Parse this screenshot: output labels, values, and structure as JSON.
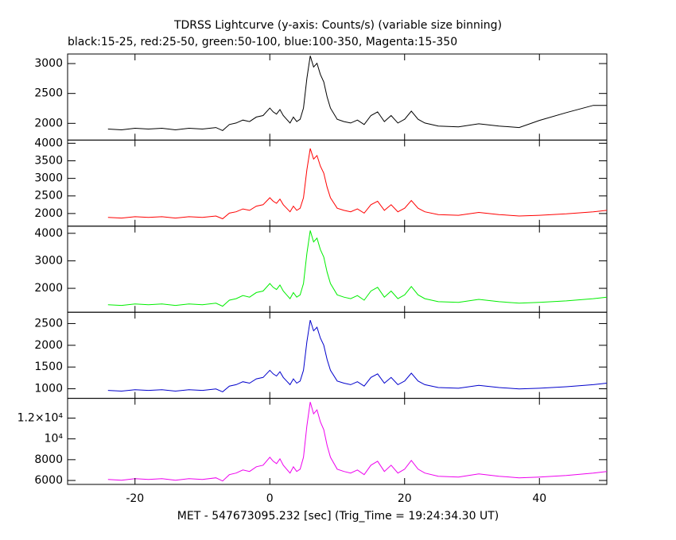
{
  "chart_data": {
    "type": "line",
    "title": "TDRSS Lightcurve (y-axis: Counts/s) (variable size binning)",
    "subtitle": "black:15-25, red:25-50, green:50-100, blue:100-350, Magenta:15-350",
    "xlabel": "MET - 547673095.232 [sec] (Trig_Time = 19:24:34.30 UT)",
    "xlim": [
      -30,
      50
    ],
    "xticks": [
      -20,
      0,
      20,
      40
    ],
    "x": [
      -24,
      -22,
      -20,
      -18,
      -16,
      -14,
      -12,
      -10,
      -8,
      -7,
      -6,
      -5,
      -4,
      -3,
      -2,
      -1,
      0,
      0.5,
      1,
      1.5,
      2,
      2.5,
      3,
      3.5,
      4,
      4.5,
      5,
      5.5,
      6,
      6.5,
      7,
      7.5,
      8,
      8.5,
      9,
      10,
      11,
      12,
      13,
      14,
      15,
      16,
      17,
      18,
      19,
      20,
      21,
      22,
      23,
      25,
      28,
      31,
      34,
      37,
      40,
      44,
      48,
      50
    ],
    "series": [
      {
        "color": "#000000",
        "ylim": [
          1720,
          3160
        ],
        "yticks": [
          2000,
          2500,
          3000
        ],
        "values": [
          1905,
          1892,
          1918,
          1905,
          1918,
          1892,
          1918,
          1905,
          1930,
          1880,
          1980,
          2005,
          2055,
          2030,
          2105,
          2130,
          2255,
          2192,
          2155,
          2230,
          2130,
          2068,
          2005,
          2105,
          2030,
          2068,
          2255,
          2755,
          3130,
          2942,
          3005,
          2818,
          2692,
          2442,
          2255,
          2068,
          2030,
          2005,
          2055,
          1980,
          2130,
          2192,
          2030,
          2130,
          2005,
          2068,
          2205,
          2068,
          2005,
          1955,
          1942,
          1992,
          1955,
          1930,
          2050,
          2180,
          2300,
          2300
        ]
      },
      {
        "color": "#ff0000",
        "ylim": [
          1640,
          4090
        ],
        "yticks": [
          2000,
          2500,
          3000,
          3500,
          4000
        ],
        "values": [
          1890,
          1870,
          1910,
          1890,
          1910,
          1870,
          1910,
          1890,
          1930,
          1850,
          2010,
          2050,
          2130,
          2090,
          2210,
          2250,
          2450,
          2350,
          2290,
          2410,
          2250,
          2150,
          2050,
          2210,
          2090,
          2150,
          2450,
          3250,
          3850,
          3550,
          3650,
          3350,
          3150,
          2750,
          2450,
          2150,
          2090,
          2050,
          2130,
          2010,
          2250,
          2350,
          2090,
          2250,
          2050,
          2150,
          2370,
          2150,
          2050,
          1970,
          1950,
          2030,
          1970,
          1930,
          1950,
          1990,
          2050,
          2090
        ]
      },
      {
        "color": "#00ee00",
        "ylim": [
          1130,
          4260
        ],
        "yticks": [
          2000,
          3000,
          4000
        ],
        "values": [
          1405,
          1378,
          1432,
          1405,
          1432,
          1378,
          1432,
          1405,
          1460,
          1350,
          1570,
          1625,
          1735,
          1680,
          1845,
          1900,
          2175,
          2038,
          1955,
          2120,
          1900,
          1762,
          1625,
          1845,
          1680,
          1762,
          2175,
          3275,
          4100,
          3688,
          3825,
          3412,
          3138,
          2588,
          2175,
          1762,
          1680,
          1625,
          1735,
          1570,
          1900,
          2038,
          1680,
          1900,
          1625,
          1762,
          2065,
          1762,
          1625,
          1515,
          1488,
          1598,
          1515,
          1460,
          1488,
          1542,
          1625,
          1680
        ]
      },
      {
        "color": "#0000cc",
        "ylim": [
          780,
          2760
        ],
        "yticks": [
          1000,
          1500,
          2000,
          2500
        ],
        "values": [
          963,
          946,
          980,
          963,
          980,
          946,
          980,
          963,
          996,
          930,
          1062,
          1095,
          1161,
          1128,
          1227,
          1260,
          1425,
          1342,
          1293,
          1392,
          1260,
          1178,
          1095,
          1227,
          1128,
          1178,
          1425,
          2085,
          2580,
          2332,
          2415,
          2168,
          2002,
          1672,
          1425,
          1178,
          1128,
          1095,
          1161,
          1062,
          1260,
          1342,
          1128,
          1260,
          1095,
          1178,
          1359,
          1178,
          1095,
          1029,
          1012,
          1078,
          1029,
          996,
          1012,
          1046,
          1095,
          1128
        ]
      },
      {
        "color": "#ee00ee",
        "ylim": [
          5620,
          13900
        ],
        "yticks": [
          6000,
          8000,
          {
            "value": 10000,
            "label": "10⁴"
          },
          {
            "value": 12000,
            "label": "1.2×10⁴"
          }
        ],
        "values": [
          6102,
          6026,
          6178,
          6102,
          6178,
          6026,
          6178,
          6102,
          6254,
          5950,
          6558,
          6710,
          7014,
          6862,
          7318,
          7470,
          8230,
          7850,
          7622,
          8078,
          7470,
          7090,
          6710,
          7318,
          6862,
          7090,
          8230,
          11270,
          13550,
          12410,
          12790,
          11650,
          10890,
          9370,
          8230,
          7090,
          6862,
          6710,
          7014,
          6558,
          7470,
          7850,
          6862,
          7470,
          6710,
          7090,
          7926,
          7090,
          6710,
          6406,
          6330,
          6634,
          6406,
          6254,
          6330,
          6482,
          6710,
          6862
        ]
      }
    ]
  }
}
